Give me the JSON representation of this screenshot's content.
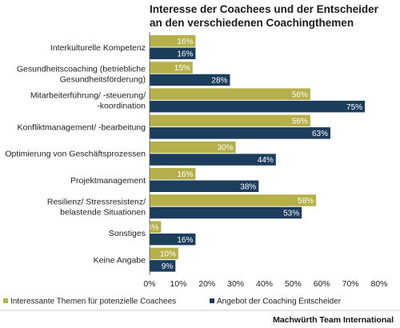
{
  "chart_data": {
    "type": "bar",
    "orientation": "horizontal",
    "title_lines": [
      "Interesse der Coachees und der Entscheider",
      "an den verschiedenen Coachingthemen"
    ],
    "categories": [
      [
        "Interkulturelle Kompetenz"
      ],
      [
        "Gesundheitscoaching (betriebliche",
        "Gesundheitsförderung)"
      ],
      [
        "Mitarbeiterführung/ -steuerung/",
        "-koordination"
      ],
      [
        "Konfliktmanagement/ -bearbeitung"
      ],
      [
        "Optimierung von Geschäftsprozessen"
      ],
      [
        "Projektmanagement"
      ],
      [
        "Resilienz/ Stressresistenz/",
        "belastende Situationen"
      ],
      [
        "Sonstiges"
      ],
      [
        "Keine Angabe"
      ]
    ],
    "series": [
      {
        "name": "Interessante Themen für potenzielle Coachees",
        "color": "#b5b04a",
        "values": [
          16,
          15,
          56,
          56,
          30,
          16,
          58,
          4,
          10
        ]
      },
      {
        "name": "Angebot der Coaching Entscheider",
        "color": "#1d3d5c",
        "values": [
          16,
          28,
          75,
          63,
          44,
          38,
          53,
          16,
          9
        ]
      }
    ],
    "x_ticks": [
      0,
      10,
      20,
      30,
      40,
      50,
      60,
      70,
      80
    ],
    "xlim": [
      0,
      80
    ],
    "value_suffix": "%",
    "grid": false,
    "legend_position": "bottom"
  },
  "credit": "Machwürth Team International"
}
